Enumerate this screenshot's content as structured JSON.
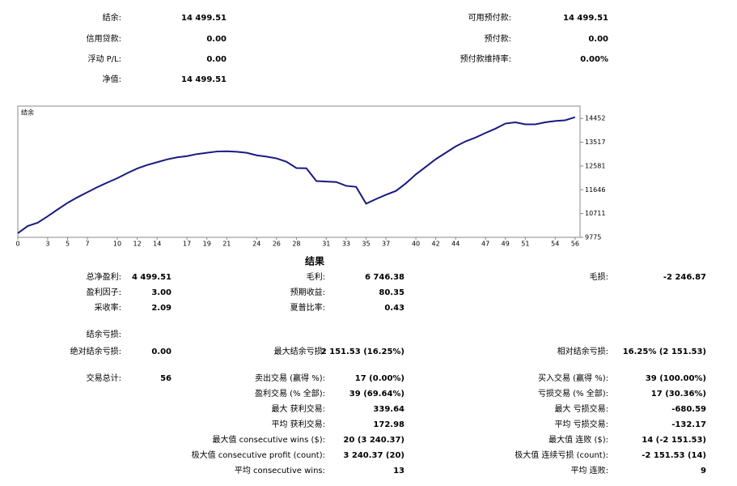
{
  "summary": {
    "left": [
      {
        "label": "结余:",
        "value": "14 499.51"
      },
      {
        "label": "信用贷款:",
        "value": "0.00"
      },
      {
        "label": "浮动 P/L:",
        "value": "0.00"
      },
      {
        "label": "净值:",
        "value": "14 499.51"
      }
    ],
    "right": [
      {
        "label": "可用预付款:",
        "value": "14 499.51"
      },
      {
        "label": "预付款:",
        "value": "0.00"
      },
      {
        "label": "预付款维持率:",
        "value": "0.00%"
      }
    ]
  },
  "chart_data": {
    "type": "line",
    "title": "结余",
    "x": [
      0,
      1,
      2,
      3,
      4,
      5,
      6,
      7,
      8,
      9,
      10,
      11,
      12,
      13,
      14,
      15,
      16,
      17,
      18,
      19,
      20,
      21,
      22,
      23,
      24,
      25,
      26,
      27,
      28,
      29,
      30,
      31,
      32,
      33,
      34,
      35,
      36,
      37,
      38,
      39,
      40,
      41,
      42,
      43,
      44,
      45,
      46,
      47,
      48,
      49,
      50,
      51,
      52,
      53,
      54,
      55,
      56
    ],
    "series": [
      {
        "color": "#1a1a80",
        "values": [
          9936,
          10220,
          10350,
          10600,
          10870,
          11130,
          11350,
          11550,
          11750,
          11930,
          12100,
          12300,
          12480,
          12620,
          12730,
          12840,
          12920,
          12970,
          13050,
          13100,
          13150,
          13160,
          13140,
          13100,
          13000,
          12950,
          12880,
          12750,
          12500,
          12490,
          11990,
          11970,
          11950,
          11800,
          11760,
          11100,
          11280,
          11450,
          11600,
          11900,
          12250,
          12550,
          12850,
          13100,
          13350,
          13550,
          13700,
          13880,
          14050,
          14250,
          14300,
          14220,
          14220,
          14300,
          14350,
          14380,
          14500
        ]
      }
    ],
    "xlim": [
      0,
      56.5
    ],
    "ylim": [
      9775,
      14936
    ],
    "xticks": [
      0,
      3,
      5,
      7,
      10,
      12,
      14,
      17,
      19,
      21,
      24,
      26,
      28,
      31,
      33,
      35,
      37,
      40,
      42,
      44,
      47,
      49,
      51,
      54,
      56
    ],
    "yticks": [
      9775,
      10711,
      11646,
      12581,
      13517,
      14452
    ]
  },
  "results": {
    "title": "结果",
    "rows": [
      [
        {
          "label": "总净盈利:",
          "value": "4 499.51"
        },
        {
          "label": "毛利:",
          "value": "6 746.38"
        },
        {
          "label": "毛损:",
          "value": "-2 246.87"
        }
      ],
      [
        {
          "label": "盈利因子:",
          "value": "3.00"
        },
        {
          "label": "预期收益:",
          "value": "80.35"
        },
        null
      ],
      [
        {
          "label": "采收率:",
          "value": "2.09"
        },
        {
          "label": "夏普比率:",
          "value": "0.43"
        },
        null
      ],
      [
        {
          "label": "结余亏损:"
        },
        null,
        null
      ],
      [
        {
          "label": "绝对结余亏损:",
          "value": "0.00"
        },
        {
          "label": "最大结余亏损:",
          "value": "2 151.53 (16.25%)"
        },
        {
          "label": "相对结余亏损:",
          "value": "16.25% (2 151.53)"
        }
      ],
      [
        {
          "label": "交易总计:",
          "value": "56"
        },
        {
          "label": "卖出交易 (赢得 %):",
          "value": "17 (0.00%)"
        },
        {
          "label": "买入交易 (赢得 %):",
          "value": "39 (100.00%)"
        }
      ],
      [
        null,
        {
          "label": "盈利交易 (% 全部):",
          "value": "39 (69.64%)"
        },
        {
          "label": "亏损交易 (% 全部):",
          "value": "17 (30.36%)"
        }
      ],
      [
        null,
        {
          "label": "最大 获利交易:",
          "value": "339.64"
        },
        {
          "label": "最大 亏损交易:",
          "value": "-680.59"
        }
      ],
      [
        null,
        {
          "label": "平均 获利交易:",
          "value": "172.98"
        },
        {
          "label": "平均 亏损交易:",
          "value": "-132.17"
        }
      ],
      [
        null,
        {
          "label": "最大值 consecutive wins ($):",
          "value": "20 (3 240.37)"
        },
        {
          "label": "最大值 连败 ($):",
          "value": "14 (-2 151.53)"
        }
      ],
      [
        null,
        {
          "label": "极大值 consecutive profit (count):",
          "value": "3 240.37 (20)"
        },
        {
          "label": "极大值 连续亏损 (count):",
          "value": "-2 151.53 (14)"
        }
      ],
      [
        null,
        {
          "label": "平均 consecutive wins:",
          "value": "13"
        },
        {
          "label": "平均 连败:",
          "value": "9"
        }
      ]
    ]
  }
}
